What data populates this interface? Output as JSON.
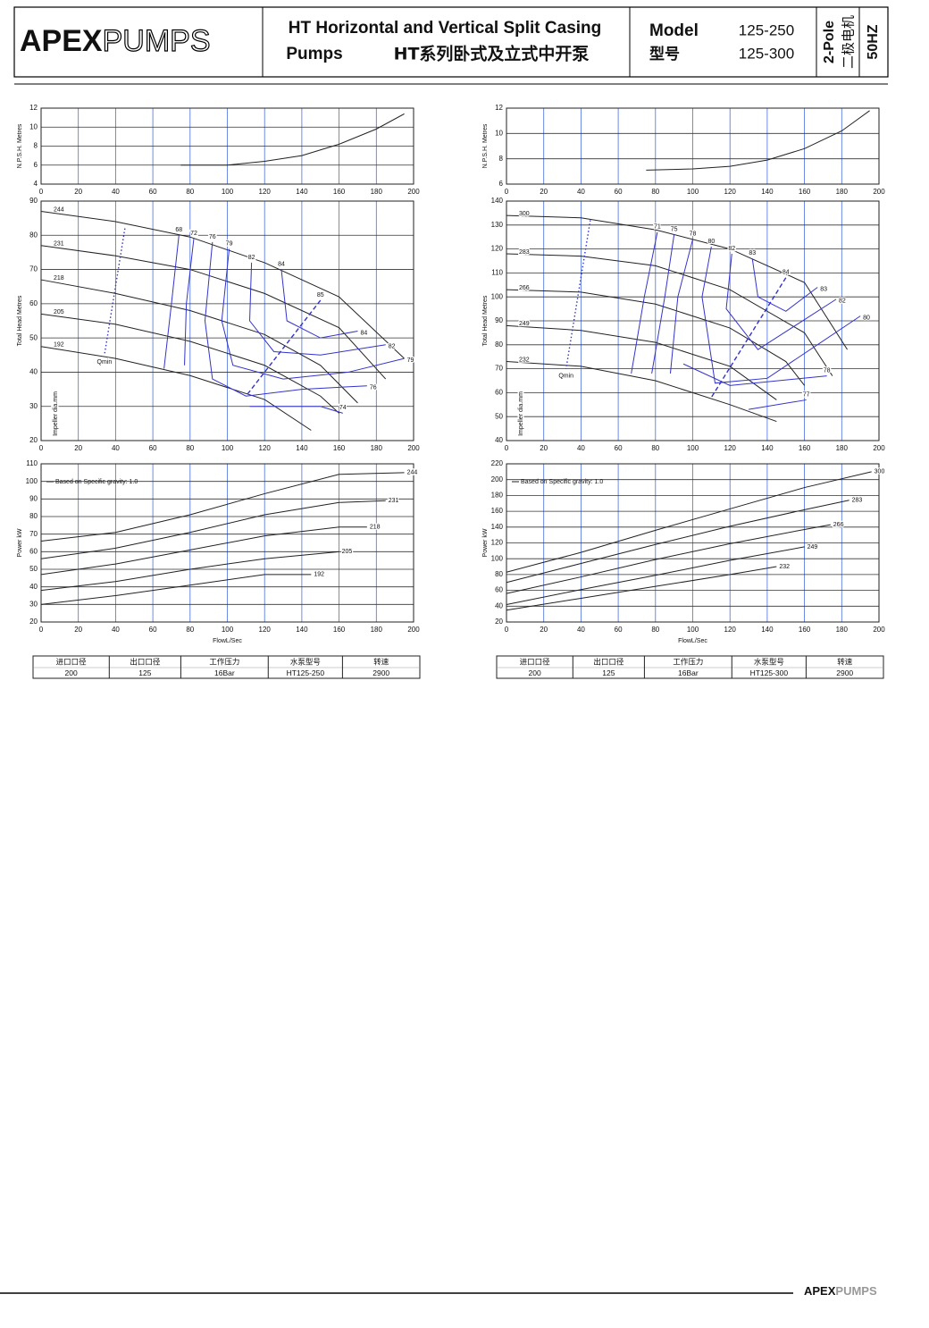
{
  "header": {
    "logo_a": "APEX",
    "logo_b": "PUMPS",
    "title_en": "HT Horizontal and Vertical Split Casing",
    "title_en2": "Pumps",
    "title_cn": "HT系列卧式及立式中开泵",
    "model_label": "Model",
    "model_label_cn": "型号",
    "models": [
      "125-250",
      "125-300"
    ],
    "pole": "2-Pole",
    "pole_cn": "二极电机",
    "freq": "50HZ"
  },
  "chart_data": [
    {
      "type": "line",
      "ylabel": "N.P.S.H. Metres",
      "xlim": [
        0,
        200
      ],
      "xticks": [
        0,
        20,
        40,
        60,
        80,
        100,
        120,
        140,
        160,
        180,
        200
      ],
      "ylim": [
        4,
        12
      ],
      "yticks": [
        4,
        6,
        8,
        10,
        12
      ],
      "grid": true,
      "series": [
        {
          "color": "#222222",
          "x": [
            75,
            100,
            120,
            140,
            160,
            180,
            195
          ],
          "values": [
            6,
            6,
            6.4,
            7,
            8.2,
            9.8,
            11.4
          ]
        }
      ]
    },
    {
      "type": "line",
      "ylabel": "N.P.S.H. Metres",
      "xlim": [
        0,
        200
      ],
      "xticks": [
        0,
        20,
        40,
        60,
        80,
        100,
        120,
        140,
        160,
        180,
        200
      ],
      "ylim": [
        6,
        12
      ],
      "yticks": [
        6,
        8,
        10,
        12
      ],
      "grid": true,
      "series": [
        {
          "color": "#222222",
          "x": [
            75,
            100,
            120,
            140,
            160,
            180,
            195
          ],
          "values": [
            7.1,
            7.2,
            7.4,
            7.9,
            8.8,
            10.2,
            11.8
          ]
        }
      ]
    },
    {
      "type": "line",
      "ylabel": "Total Head Metres",
      "annotation": "Impeller dia.mm",
      "xlim": [
        0,
        200
      ],
      "xticks": [
        0,
        20,
        40,
        60,
        80,
        100,
        120,
        140,
        160,
        180,
        200
      ],
      "ylim": [
        20,
        90
      ],
      "yticks": [
        20,
        30,
        40,
        50,
        60,
        70,
        80,
        90
      ],
      "grid": true,
      "series": [
        {
          "name": "244",
          "color": "#222222",
          "x": [
            0,
            40,
            80,
            120,
            160,
            195
          ],
          "values": [
            87,
            84,
            79.5,
            72,
            62,
            44
          ]
        },
        {
          "name": "231",
          "color": "#222222",
          "x": [
            0,
            40,
            80,
            120,
            160,
            185
          ],
          "values": [
            77,
            74,
            70,
            63,
            53,
            38
          ]
        },
        {
          "name": "218",
          "color": "#222222",
          "x": [
            0,
            40,
            80,
            120,
            150,
            170
          ],
          "values": [
            67,
            63,
            58,
            51,
            42,
            31
          ]
        },
        {
          "name": "205",
          "color": "#222222",
          "x": [
            0,
            40,
            80,
            120,
            150,
            160
          ],
          "values": [
            57,
            54,
            49,
            42,
            33,
            28
          ]
        },
        {
          "name": "192",
          "color": "#222222",
          "x": [
            0,
            40,
            80,
            120,
            145
          ],
          "values": [
            47.5,
            44,
            39,
            32,
            23
          ]
        },
        {
          "name": "68",
          "color": "#3333cc",
          "x": [
            74,
            70,
            66
          ],
          "values": [
            80,
            60,
            41
          ]
        },
        {
          "name": "72",
          "color": "#3333cc",
          "x": [
            82,
            78,
            77
          ],
          "values": [
            79,
            60,
            42
          ]
        },
        {
          "name": "76",
          "color": "#3333cc",
          "x": [
            92,
            88,
            92,
            110,
            140,
            175
          ],
          "values": [
            78,
            55,
            38,
            33,
            35,
            36
          ]
        },
        {
          "name": "79",
          "color": "#3333cc",
          "x": [
            101,
            97,
            103,
            130,
            165,
            195
          ],
          "values": [
            76,
            55,
            42,
            38,
            40,
            44
          ]
        },
        {
          "name": "82",
          "color": "#3333cc",
          "x": [
            113,
            112,
            125,
            150,
            185
          ],
          "values": [
            72,
            55,
            46,
            45,
            48
          ]
        },
        {
          "name": "84",
          "color": "#3333cc",
          "x": [
            129,
            132,
            150,
            170
          ],
          "values": [
            70,
            55,
            50,
            52
          ]
        },
        {
          "name": "74",
          "color": "#3333cc",
          "x": [
            162,
            150,
            112
          ],
          "values": [
            28,
            30,
            30
          ]
        },
        {
          "name": "85",
          "color": "#3333cc",
          "style": "dashed",
          "x": [
            150,
            110
          ],
          "values": [
            61,
            33
          ]
        },
        {
          "name": "Qmin",
          "color": "#3333cc",
          "style": "dotted",
          "x": [
            45,
            34
          ],
          "values": [
            82,
            45
          ]
        }
      ]
    },
    {
      "type": "line",
      "ylabel": "Total Head Metres",
      "annotation": "Impeller dia.mm",
      "xlim": [
        0,
        200
      ],
      "xticks": [
        0,
        20,
        40,
        60,
        80,
        100,
        120,
        140,
        160,
        180,
        200
      ],
      "ylim": [
        40,
        140
      ],
      "yticks": [
        40,
        50,
        60,
        70,
        80,
        90,
        100,
        110,
        120,
        130,
        140
      ],
      "grid": true,
      "series": [
        {
          "name": "300",
          "color": "#222222",
          "x": [
            0,
            40,
            80,
            120,
            160,
            183
          ],
          "values": [
            134,
            133,
            128,
            120,
            106,
            78
          ]
        },
        {
          "name": "283",
          "color": "#222222",
          "x": [
            0,
            40,
            80,
            120,
            160,
            175
          ],
          "values": [
            118,
            117,
            113,
            103,
            85,
            67
          ]
        },
        {
          "name": "266",
          "color": "#222222",
          "x": [
            0,
            40,
            80,
            120,
            150,
            160
          ],
          "values": [
            103,
            102,
            97,
            87,
            73,
            63
          ]
        },
        {
          "name": "249",
          "color": "#222222",
          "x": [
            0,
            40,
            80,
            120,
            145
          ],
          "values": [
            88,
            86,
            81,
            71,
            57
          ]
        },
        {
          "name": "232",
          "color": "#222222",
          "x": [
            0,
            40,
            80,
            120,
            145
          ],
          "values": [
            73,
            71,
            65,
            55,
            48
          ]
        },
        {
          "name": "71",
          "color": "#3333cc",
          "x": [
            81,
            74,
            67
          ],
          "values": [
            127,
            100,
            68
          ]
        },
        {
          "name": "75",
          "color": "#3333cc",
          "x": [
            90,
            85,
            78
          ],
          "values": [
            126,
            100,
            68
          ]
        },
        {
          "name": "78",
          "color": "#3333cc",
          "x": [
            100,
            92,
            88
          ],
          "values": [
            124,
            100,
            68
          ]
        },
        {
          "name": "80",
          "color": "#3333cc",
          "x": [
            110,
            105,
            112,
            140,
            190
          ],
          "values": [
            121,
            100,
            64,
            66,
            92
          ]
        },
        {
          "name": "82",
          "color": "#3333cc",
          "x": [
            121,
            118,
            135,
            177
          ],
          "values": [
            118,
            95,
            78,
            99
          ]
        },
        {
          "name": "83",
          "color": "#3333cc",
          "x": [
            132,
            135,
            150,
            167
          ],
          "values": [
            116,
            100,
            94,
            104
          ]
        },
        {
          "name": "78",
          "color": "#3333cc",
          "x": [
            172,
            120,
            95
          ],
          "values": [
            67,
            63,
            72
          ]
        },
        {
          "name": "77",
          "color": "#3333cc",
          "x": [
            161,
            130
          ],
          "values": [
            57,
            53
          ]
        },
        {
          "name": "84",
          "color": "#3333cc",
          "style": "dashed",
          "x": [
            150,
            110
          ],
          "values": [
            108,
            58
          ]
        },
        {
          "name": "Qmin",
          "color": "#3333cc",
          "style": "dotted",
          "x": [
            45,
            32
          ],
          "values": [
            132,
            70
          ]
        }
      ]
    },
    {
      "type": "line",
      "ylabel": "Power kW",
      "xlabel": "FlowL/Sec",
      "annotation": "Based on Specific gravity:  1.0",
      "xlim": [
        0,
        200
      ],
      "xticks": [
        0,
        20,
        40,
        60,
        80,
        100,
        120,
        140,
        160,
        180,
        200
      ],
      "ylim": [
        20,
        110
      ],
      "yticks": [
        20,
        30,
        40,
        50,
        60,
        70,
        80,
        90,
        100,
        110
      ],
      "grid": true,
      "series": [
        {
          "name": "244",
          "color": "#222222",
          "x": [
            0,
            40,
            80,
            120,
            160,
            195
          ],
          "values": [
            66,
            71,
            81,
            93,
            104,
            105
          ]
        },
        {
          "name": "231",
          "color": "#222222",
          "x": [
            0,
            40,
            80,
            120,
            160,
            185
          ],
          "values": [
            56,
            62,
            71,
            81,
            88,
            89
          ]
        },
        {
          "name": "218",
          "color": "#222222",
          "x": [
            0,
            40,
            80,
            120,
            160,
            175
          ],
          "values": [
            47,
            53,
            61,
            69,
            74,
            74
          ]
        },
        {
          "name": "205",
          "color": "#222222",
          "x": [
            0,
            40,
            80,
            120,
            160
          ],
          "values": [
            38,
            43,
            50,
            56,
            60
          ]
        },
        {
          "name": "192",
          "color": "#222222",
          "x": [
            0,
            40,
            80,
            120,
            145
          ],
          "values": [
            30,
            35,
            41,
            47,
            47
          ]
        }
      ]
    },
    {
      "type": "line",
      "ylabel": "Power kW",
      "xlabel": "FlowL/Sec",
      "annotation": "Based on Specific gravity:  1.0",
      "xlim": [
        0,
        200
      ],
      "xticks": [
        0,
        20,
        40,
        60,
        80,
        100,
        120,
        140,
        160,
        180,
        200
      ],
      "ylim": [
        20,
        220
      ],
      "yticks": [
        20,
        40,
        60,
        80,
        100,
        120,
        140,
        160,
        180,
        200,
        220
      ],
      "grid": true,
      "series": [
        {
          "name": "300",
          "color": "#222222",
          "x": [
            0,
            40,
            80,
            120,
            160,
            196
          ],
          "values": [
            83,
            108,
            136,
            163,
            190,
            210
          ]
        },
        {
          "name": "283",
          "color": "#222222",
          "x": [
            0,
            40,
            80,
            120,
            160,
            184
          ],
          "values": [
            70,
            94,
            118,
            141,
            162,
            174
          ]
        },
        {
          "name": "266",
          "color": "#222222",
          "x": [
            0,
            40,
            80,
            120,
            160,
            174
          ],
          "values": [
            56,
            77,
            99,
            119,
            137,
            143
          ]
        },
        {
          "name": "249",
          "color": "#222222",
          "x": [
            0,
            40,
            80,
            120,
            160
          ],
          "values": [
            42,
            61,
            79,
            98,
            115
          ]
        },
        {
          "name": "232",
          "color": "#222222",
          "x": [
            0,
            40,
            80,
            120,
            145
          ],
          "values": [
            35,
            50,
            65,
            80,
            90
          ]
        }
      ]
    }
  ],
  "tables": [
    {
      "columns": [
        "进口口径",
        "出口口径",
        "工作压力",
        "水泵型号",
        "转速"
      ],
      "row": [
        "200",
        "125",
        "16Bar",
        "HT125-250",
        "2900"
      ]
    },
    {
      "columns": [
        "进口口径",
        "出口口径",
        "工作压力",
        "水泵型号",
        "转速"
      ],
      "row": [
        "200",
        "125",
        "16Bar",
        "HT125-300",
        "2900"
      ]
    }
  ],
  "footer": {
    "logo_a": "APEX",
    "logo_b": "PUMPS"
  }
}
